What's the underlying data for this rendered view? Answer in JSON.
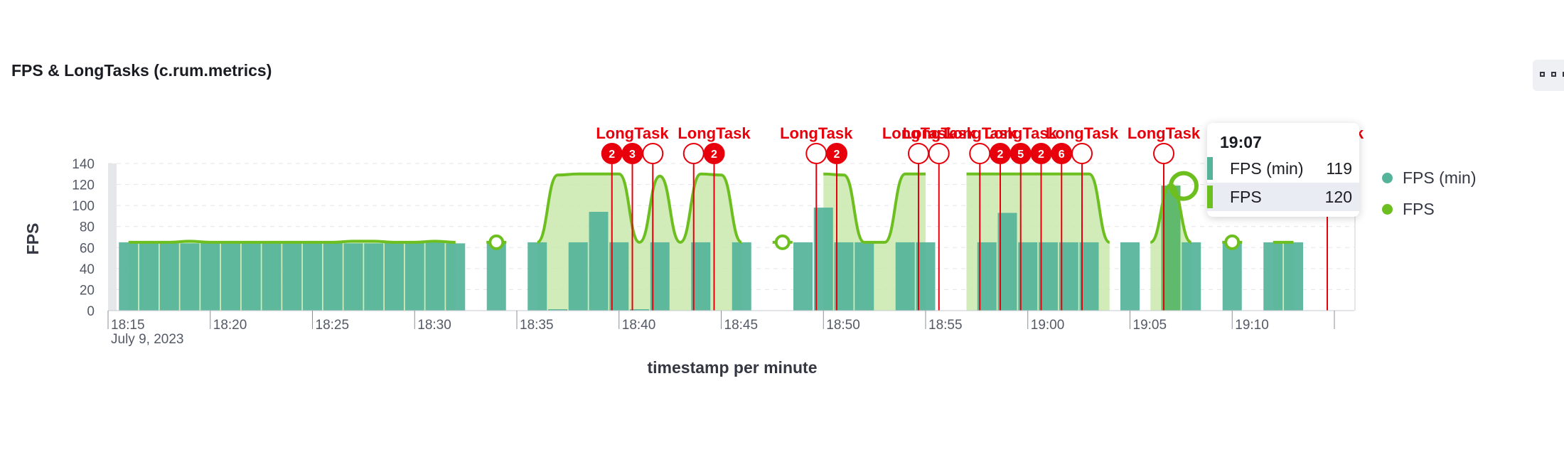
{
  "panel": {
    "title": "FPS & LongTasks (c.rum.metrics)",
    "menu_icon": "boxes-horizontal-icon"
  },
  "colors": {
    "fps_min": "#54b399",
    "fps": "#6dbe1f",
    "fps_area": "#c9e8ad",
    "longtask": "#e7000b"
  },
  "chart_data": {
    "type": "bar",
    "title": "FPS & LongTasks (c.rum.metrics)",
    "xlabel": "timestamp per minute",
    "ylabel": "FPS",
    "ylim": [
      0,
      140
    ],
    "y_ticks": [
      0,
      20,
      40,
      60,
      80,
      100,
      120,
      140
    ],
    "x_ticks": [
      "18:15",
      "18:20",
      "18:25",
      "18:30",
      "18:35",
      "18:40",
      "18:45",
      "18:50",
      "18:55",
      "19:00",
      "19:05",
      "19:10"
    ],
    "x_sublabel": "July 9, 2023",
    "grid": true,
    "legend_position": "right",
    "x": [
      "18:16",
      "18:17",
      "18:18",
      "18:19",
      "18:20",
      "18:21",
      "18:22",
      "18:23",
      "18:24",
      "18:25",
      "18:26",
      "18:27",
      "18:28",
      "18:29",
      "18:30",
      "18:31",
      "18:32",
      "18:33",
      "18:34",
      "18:35",
      "18:36",
      "18:37",
      "18:38",
      "18:39",
      "18:40",
      "18:41",
      "18:42",
      "18:43",
      "18:44",
      "18:45",
      "18:46",
      "18:47",
      "18:48",
      "18:49",
      "18:50",
      "18:51",
      "18:52",
      "18:53",
      "18:54",
      "18:55",
      "18:56",
      "18:57",
      "18:58",
      "18:59",
      "19:00",
      "19:01",
      "19:02",
      "19:03",
      "19:04",
      "19:05",
      "19:06",
      "19:07",
      "19:08",
      "19:09",
      "19:10",
      "19:11",
      "19:12",
      "19:13",
      "19:14"
    ],
    "series": [
      {
        "name": "FPS (min)",
        "type": "bar",
        "values": [
          65,
          65,
          64,
          64,
          65,
          65,
          64,
          64,
          65,
          64,
          65,
          64,
          64,
          65,
          65,
          65,
          64,
          null,
          65,
          null,
          65,
          1,
          65,
          94,
          65,
          0,
          65,
          null,
          65,
          null,
          65,
          null,
          null,
          65,
          98,
          65,
          65,
          null,
          65,
          65,
          null,
          null,
          65,
          93,
          65,
          65,
          65,
          65,
          null,
          65,
          null,
          119,
          65,
          null,
          65,
          null,
          65,
          65,
          null
        ],
        "highlight_x": "19:07"
      },
      {
        "name": "FPS",
        "type": "area",
        "values": [
          65,
          65,
          65,
          66,
          65,
          65,
          65,
          65,
          65,
          65,
          65,
          66,
          66,
          65,
          65,
          66,
          65,
          null,
          65,
          null,
          65,
          129,
          130,
          130,
          130,
          65,
          128,
          65,
          130,
          129,
          65,
          null,
          65,
          null,
          130,
          129,
          65,
          65,
          130,
          130,
          null,
          130,
          130,
          130,
          130,
          130,
          130,
          130,
          65,
          null,
          65,
          120,
          65,
          null,
          65,
          null,
          65,
          65,
          null
        ]
      }
    ],
    "annotations": {
      "label": "LongTask",
      "markers": [
        {
          "x": "18:40",
          "count": "2"
        },
        {
          "x": "18:41",
          "count": "3"
        },
        {
          "x": "18:42",
          "count": ""
        },
        {
          "x": "18:44",
          "count": ""
        },
        {
          "x": "18:45",
          "count": "2"
        },
        {
          "x": "18:50",
          "count": ""
        },
        {
          "x": "18:51",
          "count": "2"
        },
        {
          "x": "18:55",
          "count": ""
        },
        {
          "x": "18:56",
          "count": ""
        },
        {
          "x": "18:58",
          "count": ""
        },
        {
          "x": "18:59",
          "count": "2"
        },
        {
          "x": "19:00",
          "count": "5"
        },
        {
          "x": "19:01",
          "count": "2"
        },
        {
          "x": "19:02",
          "count": "6"
        },
        {
          "x": "19:03",
          "count": ""
        },
        {
          "x": "19:07",
          "count": ""
        },
        {
          "x": "19:15",
          "count": ""
        }
      ]
    },
    "tooltip": {
      "title": "19:07",
      "rows": [
        {
          "label": "FPS (min)",
          "value": "119"
        },
        {
          "label": "FPS",
          "value": "120"
        }
      ]
    }
  }
}
